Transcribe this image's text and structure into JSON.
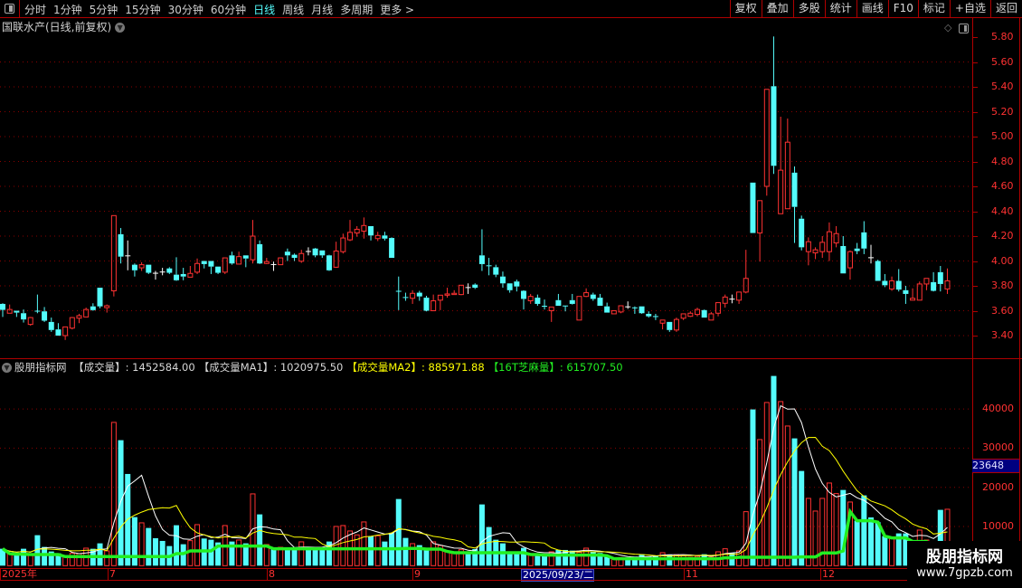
{
  "topbar": {
    "periods": [
      "分时",
      "1分钟",
      "5分钟",
      "15分钟",
      "30分钟",
      "60分钟",
      "日线",
      "周线",
      "月线",
      "多周期",
      "更多 >"
    ],
    "active_period": "日线",
    "tools": [
      "复权",
      "叠加",
      "多股",
      "统计",
      "画线",
      "F10",
      "标记",
      "+自选",
      "返回"
    ]
  },
  "price_panel": {
    "title": "国联水产(日线,前复权)",
    "y_ticks": [
      "5.80",
      "5.60",
      "5.40",
      "5.20",
      "5.00",
      "4.80",
      "4.60",
      "4.40",
      "4.20",
      "4.00",
      "3.80",
      "3.60",
      "3.40"
    ]
  },
  "indicator_panel": {
    "name": "股朋指标网",
    "items": [
      {
        "label": "【成交量】",
        "value": ": 1452584.00",
        "color": "#d8d8d8"
      },
      {
        "label": "【成交量MA1】",
        "value": ": 1020975.50",
        "color": "#d8d8d8"
      },
      {
        "label": "【成交量MA2】",
        "value": ": 885971.88",
        "color": "#ffff00"
      },
      {
        "label": "【16T芝麻量】",
        "value": ": 615707.50",
        "color": "#22ee22"
      }
    ],
    "y_ticks": [
      "40000",
      "30000",
      "20000",
      "10000"
    ],
    "crosshair_value": "23648"
  },
  "date_axis": {
    "labels": [
      "2025年",
      "7",
      "8",
      "9",
      "11",
      "12"
    ],
    "selected_date": "2025/09/23/二"
  },
  "watermark": {
    "line1": "股朋指标网",
    "line2": "www.7gpzb.com"
  },
  "colors": {
    "up": "#ff3232",
    "down": "#54fcfc",
    "ma1": "#ffffff",
    "ma2": "#ffff00",
    "zhima": "#22ee22",
    "axis": "#b00000"
  },
  "chart_data": {
    "type": "candlestick",
    "price_range": [
      3.4,
      5.8
    ],
    "volume_range": [
      0,
      40000
    ],
    "ohlc": [
      [
        3.655,
        3.66,
        3.55,
        3.607
      ],
      [
        3.58,
        3.65,
        3.58,
        3.61
      ],
      [
        3.6,
        3.6,
        3.55,
        3.585
      ],
      [
        3.58,
        3.61,
        3.505,
        3.53
      ],
      [
        3.49,
        3.55,
        3.48,
        3.545
      ],
      [
        3.6,
        3.73,
        3.58,
        3.598
      ],
      [
        3.595,
        3.63,
        3.51,
        3.52
      ],
      [
        3.51,
        3.545,
        3.43,
        3.445
      ],
      [
        3.45,
        3.5,
        3.4,
        3.4
      ],
      [
        3.4,
        3.47,
        3.365,
        3.47
      ],
      [
        3.46,
        3.55,
        3.45,
        3.545
      ],
      [
        3.54,
        3.575,
        3.5,
        3.56
      ],
      [
        3.55,
        3.625,
        3.55,
        3.61
      ],
      [
        3.635,
        3.66,
        3.6,
        3.605
      ],
      [
        3.785,
        3.785,
        3.62,
        3.635
      ],
      [
        3.625,
        3.65,
        3.585,
        3.64
      ],
      [
        3.76,
        4.365,
        3.715,
        4.365
      ],
      [
        4.215,
        4.265,
        3.98,
        4.035
      ],
      [
        4.045,
        4.165,
        3.925,
        4.045
      ],
      [
        3.97,
        3.98,
        3.875,
        3.925
      ],
      [
        3.945,
        3.99,
        3.92,
        3.97
      ],
      [
        3.97,
        3.97,
        3.895,
        3.905
      ],
      [
        3.905,
        3.92,
        3.85,
        3.905
      ],
      [
        3.915,
        3.945,
        3.885,
        3.915
      ],
      [
        3.94,
        3.95,
        3.895,
        3.905
      ],
      [
        3.89,
        4.03,
        3.84,
        3.845
      ],
      [
        3.895,
        3.945,
        3.845,
        3.875
      ],
      [
        3.87,
        3.96,
        3.87,
        3.9
      ],
      [
        3.91,
        4.02,
        3.895,
        3.98
      ],
      [
        4.0,
        4.0,
        3.94,
        3.975
      ],
      [
        4.0,
        4.0,
        3.895,
        3.955
      ],
      [
        3.955,
        3.955,
        3.895,
        3.905
      ],
      [
        3.91,
        4.025,
        3.895,
        4.025
      ],
      [
        4.045,
        4.075,
        3.97,
        3.98
      ],
      [
        3.975,
        4.075,
        3.975,
        4.035
      ],
      [
        4.045,
        4.045,
        3.95,
        4.02
      ],
      [
        4.01,
        4.33,
        3.98,
        4.2
      ],
      [
        4.135,
        4.165,
        3.975,
        3.98
      ],
      [
        3.98,
        4.025,
        3.975,
        3.995
      ],
      [
        3.975,
        3.995,
        3.92,
        3.975
      ],
      [
        3.97,
        4.025,
        3.97,
        4.025
      ],
      [
        4.075,
        4.1,
        4.0,
        4.045
      ],
      [
        4.05,
        4.06,
        4.0,
        4.025
      ],
      [
        3.998,
        4.09,
        3.985,
        4.06
      ],
      [
        4.08,
        4.11,
        4.045,
        4.08
      ],
      [
        4.1,
        4.105,
        4.03,
        4.045
      ],
      [
        4.085,
        4.085,
        4.025,
        4.045
      ],
      [
        4.045,
        4.05,
        3.92,
        3.925
      ],
      [
        3.95,
        4.155,
        3.945,
        4.08
      ],
      [
        4.075,
        4.22,
        4.06,
        4.185
      ],
      [
        4.17,
        4.33,
        4.16,
        4.23
      ],
      [
        4.225,
        4.28,
        4.195,
        4.255
      ],
      [
        4.24,
        4.35,
        4.18,
        4.285
      ],
      [
        4.28,
        4.28,
        4.165,
        4.205
      ],
      [
        4.18,
        4.235,
        4.16,
        4.205
      ],
      [
        4.205,
        4.235,
        4.165,
        4.18
      ],
      [
        4.185,
        4.19,
        4.025,
        4.025
      ],
      [
        3.76,
        3.875,
        3.605,
        3.755
      ],
      [
        3.71,
        3.745,
        3.68,
        3.708
      ],
      [
        3.7,
        3.765,
        3.655,
        3.74
      ],
      [
        3.745,
        3.76,
        3.68,
        3.715
      ],
      [
        3.705,
        3.72,
        3.595,
        3.6
      ],
      [
        3.6,
        3.73,
        3.6,
        3.68
      ],
      [
        3.685,
        3.725,
        3.605,
        3.725
      ],
      [
        3.725,
        3.785,
        3.705,
        3.735
      ],
      [
        3.73,
        3.765,
        3.73,
        3.74
      ],
      [
        3.73,
        3.805,
        3.725,
        3.805
      ],
      [
        3.79,
        3.82,
        3.735,
        3.79
      ],
      [
        3.81,
        3.82,
        3.775,
        3.785
      ],
      [
        4.045,
        4.255,
        3.92,
        3.975
      ],
      [
        3.965,
        4.025,
        3.885,
        3.963
      ],
      [
        3.95,
        3.97,
        3.87,
        3.89
      ],
      [
        3.875,
        3.915,
        3.785,
        3.82
      ],
      [
        3.82,
        3.82,
        3.745,
        3.765
      ],
      [
        3.835,
        3.85,
        3.755,
        3.795
      ],
      [
        3.76,
        3.765,
        3.61,
        3.695
      ],
      [
        3.68,
        3.735,
        3.655,
        3.715
      ],
      [
        3.705,
        3.73,
        3.64,
        3.655
      ],
      [
        3.64,
        3.69,
        3.61,
        3.638
      ],
      [
        3.6,
        3.63,
        3.51,
        3.63
      ],
      [
        3.685,
        3.735,
        3.64,
        3.64
      ],
      [
        3.642,
        3.642,
        3.595,
        3.64
      ],
      [
        3.685,
        3.735,
        3.65,
        3.655
      ],
      [
        3.525,
        3.715,
        3.525,
        3.715
      ],
      [
        3.715,
        3.78,
        3.71,
        3.745
      ],
      [
        3.73,
        3.745,
        3.68,
        3.695
      ],
      [
        3.705,
        3.735,
        3.64,
        3.64
      ],
      [
        3.635,
        3.665,
        3.585,
        3.585
      ],
      [
        3.575,
        3.6,
        3.575,
        3.6
      ],
      [
        3.59,
        3.64,
        3.58,
        3.64
      ],
      [
        3.635,
        3.675,
        3.615,
        3.635
      ],
      [
        3.627,
        3.635,
        3.575,
        3.625
      ],
      [
        3.635,
        3.635,
        3.575,
        3.58
      ],
      [
        3.575,
        3.595,
        3.545,
        3.555
      ],
      [
        3.557,
        3.575,
        3.525,
        3.555
      ],
      [
        3.5,
        3.525,
        3.45,
        3.525
      ],
      [
        3.51,
        3.51,
        3.43,
        3.445
      ],
      [
        3.445,
        3.545,
        3.43,
        3.53
      ],
      [
        3.54,
        3.575,
        3.525,
        3.575
      ],
      [
        3.555,
        3.595,
        3.55,
        3.58
      ],
      [
        3.57,
        3.625,
        3.555,
        3.61
      ],
      [
        3.605,
        3.61,
        3.545,
        3.545
      ],
      [
        3.525,
        3.59,
        3.525,
        3.575
      ],
      [
        3.58,
        3.665,
        3.555,
        3.665
      ],
      [
        3.66,
        3.73,
        3.625,
        3.71
      ],
      [
        3.697,
        3.73,
        3.66,
        3.697
      ],
      [
        3.685,
        3.75,
        3.655,
        3.75
      ],
      [
        3.75,
        4.09,
        3.74,
        3.86
      ],
      [
        4.63,
        4.63,
        4.225,
        4.225
      ],
      [
        4.225,
        4.485,
        3.995,
        4.485
      ],
      [
        4.6,
        5.38,
        4.525,
        5.38
      ],
      [
        5.405,
        5.805,
        4.7,
        4.765
      ],
      [
        4.38,
        5.16,
        4.38,
        4.73
      ],
      [
        4.42,
        5.145,
        4.42,
        4.955
      ],
      [
        4.71,
        4.76,
        4.145,
        4.435
      ],
      [
        4.34,
        4.365,
        4.085,
        4.11
      ],
      [
        4.075,
        4.19,
        3.965,
        4.155
      ],
      [
        4.065,
        4.11,
        4.015,
        4.09
      ],
      [
        4.075,
        4.2,
        4.025,
        4.15
      ],
      [
        4.075,
        4.31,
        4.0,
        4.235
      ],
      [
        4.145,
        4.28,
        4.11,
        4.22
      ],
      [
        4.12,
        4.2,
        3.9,
        3.9
      ],
      [
        3.945,
        4.085,
        3.85,
        4.075
      ],
      [
        4.1,
        4.145,
        4.055,
        4.08
      ],
      [
        4.23,
        4.32,
        4.055,
        4.1
      ],
      [
        4.03,
        4.13,
        3.98,
        4.03
      ],
      [
        4.0,
        4.01,
        3.84,
        3.84
      ],
      [
        3.84,
        3.895,
        3.79,
        3.805
      ],
      [
        3.775,
        3.875,
        3.76,
        3.84
      ],
      [
        3.84,
        3.935,
        3.755,
        3.77
      ],
      [
        3.765,
        3.8,
        3.655,
        3.735
      ],
      [
        3.685,
        3.78,
        3.685,
        3.7
      ],
      [
        3.685,
        3.835,
        3.685,
        3.815
      ],
      [
        3.815,
        3.86,
        3.765,
        3.86
      ],
      [
        3.83,
        3.91,
        3.755,
        3.76
      ],
      [
        3.91,
        3.96,
        3.755,
        3.815
      ],
      [
        3.775,
        3.94,
        3.735,
        3.84
      ]
    ],
    "volume": [
      4312,
      3080,
      2926,
      4312,
      2849,
      7777,
      4774,
      3619,
      3157,
      2310,
      3157,
      3080,
      4466,
      4312,
      5698,
      3773,
      36575,
      32032,
      23408,
      12397,
      10934,
      9625,
      7007,
      6314,
      5005,
      10318,
      5467,
      6391,
      10472,
      6930,
      6622,
      5929,
      10241,
      6160,
      6545,
      5698,
      18326,
      13090,
      5390,
      4312,
      4697,
      4312,
      4312,
      6083,
      4389,
      4389,
      4389,
      6160,
      10010,
      10241,
      8855,
      7854,
      11165,
      7469,
      7623,
      6160,
      8393,
      17017,
      7084,
      5621,
      5236,
      4235,
      6083,
      5159,
      3619,
      3311,
      4081,
      3542,
      4235,
      15631,
      9856,
      6622,
      5698,
      3542,
      3542,
      4543,
      2849,
      2849,
      2695,
      3542,
      4004,
      4004,
      3850,
      3388,
      4466,
      3619,
      3234,
      2541,
      1771,
      2079,
      2002,
      2310,
      2926,
      2310,
      2618,
      3311,
      2849,
      2772,
      2541,
      2156,
      2387,
      2926,
      2233,
      3542,
      4312,
      3234,
      3773,
      13783,
      39886,
      32186,
      41657,
      48433,
      41888,
      35651,
      32494,
      24178,
      17171,
      13937,
      17171,
      21098,
      18403,
      19327,
      16247,
      11473,
      17941,
      12320,
      11088,
      7546,
      7084,
      8239,
      8239,
      6160,
      9086,
      6545,
      4620,
      14245,
      14399
    ],
    "series": [
      {
        "name": "成交量MA1",
        "window": 5
      },
      {
        "name": "成交量MA2",
        "window": 10
      },
      {
        "name": "16T芝麻量",
        "window": 16
      }
    ]
  }
}
